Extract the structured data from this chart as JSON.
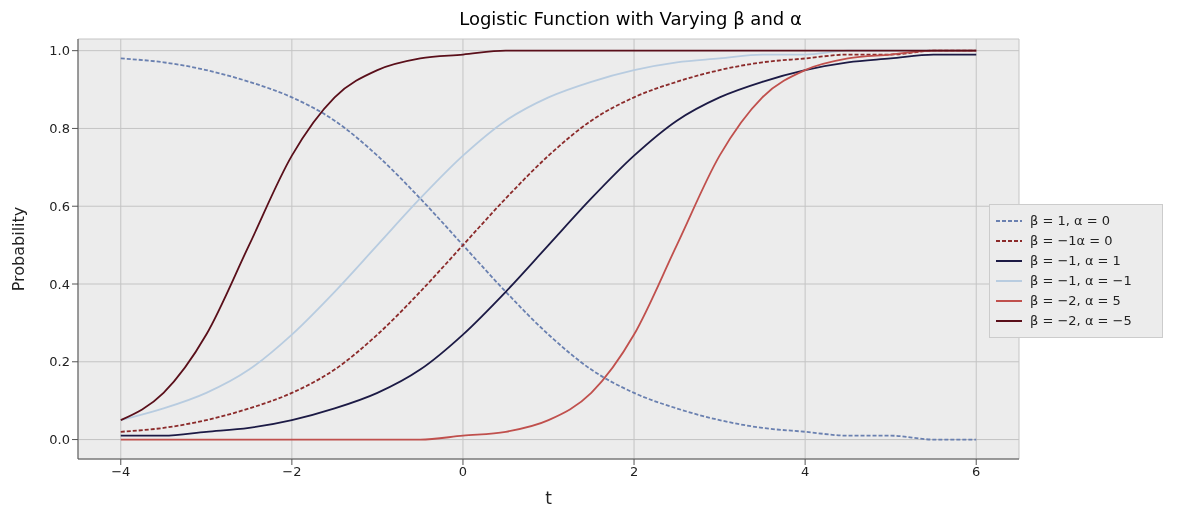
{
  "chart_data": {
    "type": "line",
    "title": "Logistic Function with Varying β and α",
    "xlabel": "t",
    "ylabel": "Probability",
    "x": [
      -4,
      -3.5,
      -3,
      -2.5,
      -2,
      -1.5,
      -1,
      -0.5,
      0,
      0.5,
      1,
      1.5,
      2,
      2.5,
      3,
      3.5,
      4,
      4.5,
      5,
      5.5,
      6
    ],
    "series": [
      {
        "name": "β = 1, α = 0",
        "color": "#6a80b0",
        "line_style": "dashed",
        "values": [
          0.98,
          0.97,
          0.95,
          0.92,
          0.88,
          0.82,
          0.73,
          0.62,
          0.5,
          0.38,
          0.27,
          0.18,
          0.12,
          0.08,
          0.05,
          0.03,
          0.02,
          0.01,
          0.01,
          0.0,
          0.0
        ]
      },
      {
        "name": "β = −1α = 0",
        "color": "#8b2a2a",
        "line_style": "dashed",
        "values": [
          0.02,
          0.03,
          0.05,
          0.08,
          0.12,
          0.18,
          0.27,
          0.38,
          0.5,
          0.62,
          0.73,
          0.82,
          0.88,
          0.92,
          0.95,
          0.97,
          0.98,
          0.99,
          0.99,
          1.0,
          1.0
        ]
      },
      {
        "name": "β = −1, α = 1",
        "color": "#1c1a45",
        "line_style": "solid",
        "values": [
          0.01,
          0.01,
          0.02,
          0.03,
          0.05,
          0.08,
          0.12,
          0.18,
          0.27,
          0.38,
          0.5,
          0.62,
          0.73,
          0.82,
          0.88,
          0.92,
          0.95,
          0.97,
          0.98,
          0.99,
          0.99
        ]
      },
      {
        "name": "β = −1, α = −1",
        "color": "#b8cce0",
        "line_style": "solid",
        "values": [
          0.05,
          0.08,
          0.12,
          0.18,
          0.27,
          0.38,
          0.5,
          0.62,
          0.73,
          0.82,
          0.88,
          0.92,
          0.95,
          0.97,
          0.98,
          0.99,
          0.99,
          1.0,
          1.0,
          1.0,
          1.0
        ]
      },
      {
        "name": "β = −2, α = 5",
        "color": "#c0504d",
        "line_style": "solid",
        "values": [
          0.0,
          0.0,
          0.0,
          0.0,
          0.0,
          0.0,
          0.0,
          0.0,
          0.01,
          0.02,
          0.05,
          0.12,
          0.27,
          0.5,
          0.73,
          0.88,
          0.95,
          0.98,
          0.99,
          1.0,
          1.0
        ]
      },
      {
        "name": "β = −2, α = −5",
        "color": "#5a0f1a",
        "line_style": "solid",
        "values": [
          0.05,
          0.12,
          0.27,
          0.5,
          0.73,
          0.88,
          0.95,
          0.98,
          0.99,
          1.0,
          1.0,
          1.0,
          1.0,
          1.0,
          1.0,
          1.0,
          1.0,
          1.0,
          1.0,
          1.0,
          1.0
        ]
      }
    ],
    "xlim": [
      -4.5,
      6.5
    ],
    "xticks": [
      {
        "value": -4,
        "label": "−4"
      },
      {
        "value": -2,
        "label": "−2"
      },
      0,
      2,
      4,
      6
    ],
    "ylim": [
      -0.05,
      1.03
    ],
    "yticks": [
      {
        "value": 0,
        "label": "0.0"
      },
      0.2,
      0.4,
      0.6,
      0.8,
      {
        "value": 1,
        "label": "1.0"
      }
    ],
    "grid": true,
    "legend": "right",
    "marker": "none"
  }
}
